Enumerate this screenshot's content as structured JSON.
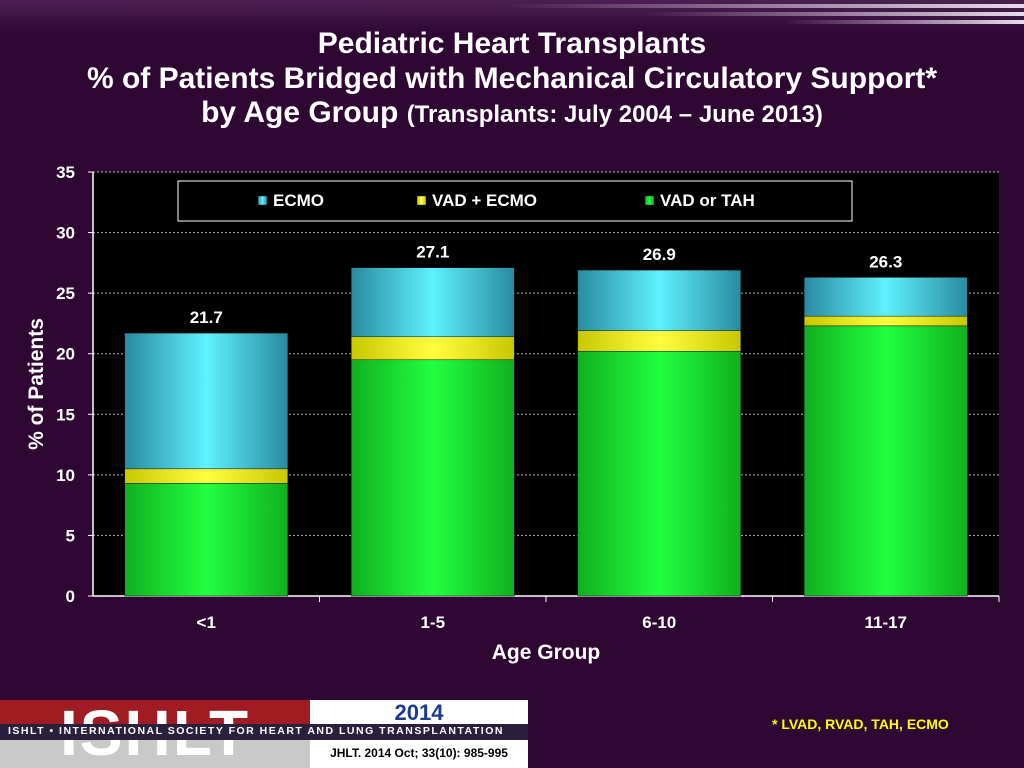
{
  "header": {
    "line1": "Pediatric Heart Transplants",
    "line2": "% of Patients Bridged with Mechanical Circulatory Support*",
    "line3_main": "by Age Group",
    "line3_sub": "(Transplants: July 2004 – June 2013)"
  },
  "chart_data": {
    "type": "bar",
    "stacked": true,
    "categories": [
      "<1",
      "1-5",
      "6-10",
      "11-17"
    ],
    "series": [
      {
        "name": "VAD or TAH",
        "values": [
          9.3,
          19.5,
          20.2,
          22.3
        ],
        "color": "#00e02a"
      },
      {
        "name": "VAD + ECMO",
        "values": [
          1.2,
          1.9,
          1.7,
          0.8
        ],
        "color": "#ffff00"
      },
      {
        "name": "ECMO",
        "values": [
          11.2,
          5.7,
          5.0,
          3.2
        ],
        "color": "#40e0f0"
      }
    ],
    "totals": [
      "21.7",
      "27.1",
      "26.9",
      "26.3"
    ],
    "legend_order": [
      "ECMO",
      "VAD + ECMO",
      "VAD or TAH"
    ],
    "xlabel": "Age Group",
    "ylabel": "% of Patients",
    "ylim": [
      0,
      35
    ],
    "yticks": [
      "0",
      "5",
      "10",
      "15",
      "20",
      "25",
      "30",
      "35"
    ],
    "grid": true,
    "legend_position": "top"
  },
  "footer": {
    "logo_text": "ISHLT",
    "society": "ISHLT • INTERNATIONAL SOCIETY FOR HEART AND LUNG TRANSPLANTATION",
    "year": "2014",
    "citation": "JHLT. 2014 Oct; 33(10): 985-995",
    "footnote": "* LVAD, RVAD, TAH, ECMO"
  },
  "colors": {
    "background": "#2e0733",
    "plot_background": "#000000",
    "footnote": "#ffff00"
  }
}
